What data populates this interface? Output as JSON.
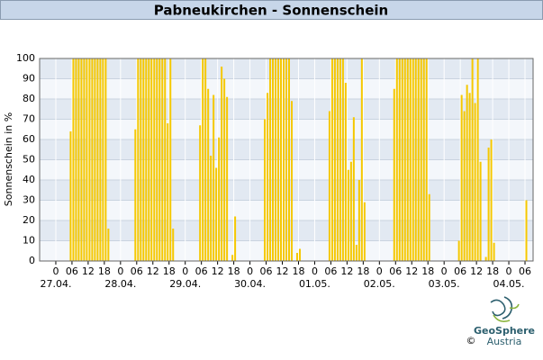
{
  "chart_data": {
    "type": "bar",
    "title": "Pabneukirchen - Sonnenschein",
    "y_label": "Sonnenschein in %",
    "color": "#f5c800",
    "grid": true,
    "xlim": [
      -6,
      177
    ],
    "ylim": [
      0,
      100
    ],
    "yticks": [
      0,
      10,
      20,
      30,
      40,
      50,
      60,
      70,
      80,
      90,
      100
    ],
    "xticks": [
      {
        "value": 0,
        "label": "0"
      },
      {
        "value": 6,
        "label": "06"
      },
      {
        "value": 12,
        "label": "12"
      },
      {
        "value": 18,
        "label": "18"
      },
      {
        "value": 24,
        "label": "0"
      },
      {
        "value": 30,
        "label": "06"
      },
      {
        "value": 36,
        "label": "12"
      },
      {
        "value": 42,
        "label": "18"
      },
      {
        "value": 48,
        "label": "0"
      },
      {
        "value": 54,
        "label": "06"
      },
      {
        "value": 60,
        "label": "12"
      },
      {
        "value": 66,
        "label": "18"
      },
      {
        "value": 72,
        "label": "0"
      },
      {
        "value": 78,
        "label": "06"
      },
      {
        "value": 84,
        "label": "12"
      },
      {
        "value": 90,
        "label": "18"
      },
      {
        "value": 96,
        "label": "0"
      },
      {
        "value": 102,
        "label": "06"
      },
      {
        "value": 108,
        "label": "12"
      },
      {
        "value": 114,
        "label": "18"
      },
      {
        "value": 120,
        "label": "0"
      },
      {
        "value": 126,
        "label": "06"
      },
      {
        "value": 132,
        "label": "12"
      },
      {
        "value": 138,
        "label": "18"
      },
      {
        "value": 144,
        "label": "0"
      },
      {
        "value": 150,
        "label": "06"
      },
      {
        "value": 156,
        "label": "12"
      },
      {
        "value": 162,
        "label": "18"
      },
      {
        "value": 168,
        "label": "0"
      },
      {
        "value": 174,
        "label": "06"
      }
    ],
    "date_labels": [
      {
        "value": 0,
        "label": "27.04."
      },
      {
        "value": 24,
        "label": "28.04."
      },
      {
        "value": 48,
        "label": "29.04."
      },
      {
        "value": 72,
        "label": "30.04."
      },
      {
        "value": 96,
        "label": "01.05."
      },
      {
        "value": 120,
        "label": "02.05."
      },
      {
        "value": 144,
        "label": "03.05."
      },
      {
        "value": 168,
        "label": "04.05."
      }
    ],
    "x": [
      5,
      6,
      7,
      8,
      9,
      10,
      11,
      12,
      13,
      14,
      15,
      16,
      17,
      18,
      19,
      29,
      30,
      31,
      32,
      33,
      34,
      35,
      36,
      37,
      38,
      39,
      40,
      41,
      42,
      43,
      53,
      54,
      55,
      56,
      57,
      58,
      59,
      60,
      61,
      62,
      63,
      65,
      66,
      77,
      78,
      79,
      80,
      81,
      82,
      83,
      84,
      85,
      86,
      87,
      89,
      90,
      101,
      102,
      103,
      104,
      105,
      106,
      107,
      108,
      109,
      110,
      111,
      112,
      113,
      114,
      125,
      126,
      127,
      128,
      129,
      130,
      131,
      132,
      133,
      134,
      135,
      136,
      137,
      138,
      149,
      150,
      151,
      152,
      153,
      154,
      155,
      156,
      157,
      159,
      160,
      161,
      162,
      174
    ],
    "values": [
      64,
      100,
      100,
      100,
      100,
      100,
      100,
      100,
      100,
      100,
      100,
      100,
      100,
      100,
      16,
      65,
      100,
      100,
      100,
      100,
      100,
      100,
      100,
      100,
      100,
      100,
      100,
      68,
      100,
      16,
      67,
      100,
      100,
      85,
      52,
      82,
      46,
      61,
      96,
      90,
      81,
      3,
      22,
      70,
      83,
      100,
      100,
      100,
      100,
      100,
      100,
      100,
      100,
      79,
      4,
      6,
      74,
      100,
      100,
      100,
      100,
      100,
      88,
      45,
      49,
      71,
      8,
      40,
      100,
      29,
      85,
      100,
      100,
      100,
      100,
      100,
      100,
      100,
      100,
      100,
      100,
      100,
      100,
      33,
      10,
      82,
      74,
      87,
      83,
      100,
      78,
      100,
      49,
      2,
      56,
      60,
      9,
      30
    ]
  },
  "logo": {
    "name": "GeoSphere",
    "country": "Austria",
    "copyright": "©"
  }
}
